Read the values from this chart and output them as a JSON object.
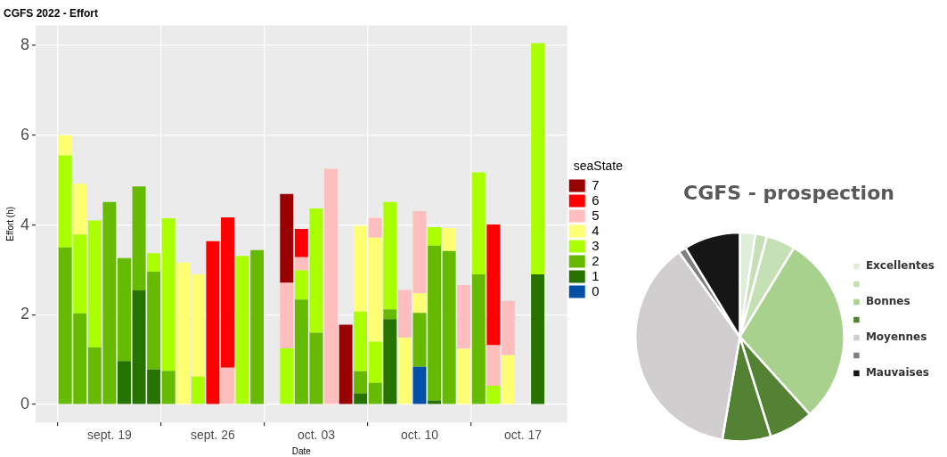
{
  "chart_data": [
    {
      "type": "bar",
      "title": "CGFS 2022 - Effort",
      "xlabel": "Date",
      "ylabel": "Effort (h)",
      "legend_title": "seaState",
      "legend": "right",
      "stacked": true,
      "grid": true,
      "x": [
        "2022-09-16",
        "2022-09-17",
        "2022-09-18",
        "2022-09-19",
        "2022-09-20",
        "2022-09-21",
        "2022-09-22",
        "2022-09-23",
        "2022-09-24",
        "2022-09-25",
        "2022-09-26",
        "2022-09-27",
        "2022-09-28",
        "2022-09-29",
        "2022-10-01",
        "2022-10-02",
        "2022-10-03",
        "2022-10-04",
        "2022-10-05",
        "2022-10-06",
        "2022-10-07",
        "2022-10-08",
        "2022-10-09",
        "2022-10-10",
        "2022-10-11",
        "2022-10-12",
        "2022-10-13",
        "2022-10-14",
        "2022-10-15",
        "2022-10-16",
        "2022-10-18"
      ],
      "xlim": [
        "2022-09-14",
        "2022-10-20"
      ],
      "xticks": [
        {
          "value": "2022-09-19",
          "label": "sept. 19"
        },
        {
          "value": "2022-09-26",
          "label": "sept. 26"
        },
        {
          "value": "2022-10-03",
          "label": "oct. 03"
        },
        {
          "value": "2022-10-10",
          "label": "oct. 10"
        },
        {
          "value": "2022-10-17",
          "label": "oct. 17"
        }
      ],
      "ylim": [
        -0.4,
        8.45
      ],
      "yticks": [
        0,
        2,
        4,
        6,
        8
      ],
      "series": [
        {
          "name": "0",
          "color": "#0050aa",
          "values": [
            null,
            null,
            null,
            null,
            null,
            null,
            null,
            null,
            null,
            null,
            null,
            null,
            null,
            null,
            null,
            null,
            null,
            null,
            null,
            null,
            null,
            null,
            null,
            0.84,
            null,
            null,
            null,
            null,
            null,
            null,
            null
          ]
        },
        {
          "name": "1",
          "color": "#267300",
          "values": [
            null,
            null,
            null,
            null,
            0.97,
            2.54,
            0.78,
            null,
            null,
            null,
            null,
            null,
            null,
            null,
            null,
            null,
            null,
            null,
            null,
            0.25,
            null,
            1.9,
            null,
            null,
            0.09,
            null,
            null,
            null,
            null,
            null,
            2.9
          ]
        },
        {
          "name": "2",
          "color": "#66bb00",
          "values": [
            3.5,
            2.03,
            1.27,
            4.51,
            2.29,
            2.32,
            2.18,
            0.75,
            null,
            null,
            null,
            null,
            null,
            3.44,
            null,
            2.34,
            1.6,
            null,
            null,
            0.49,
            0.48,
            0.22,
            null,
            1.2,
            3.45,
            3.42,
            null,
            2.9,
            null,
            null,
            null
          ]
        },
        {
          "name": "3",
          "color": "#aaff00",
          "values": [
            2.05,
            1.76,
            2.83,
            null,
            null,
            null,
            0.41,
            3.4,
            null,
            0.62,
            null,
            null,
            3.31,
            null,
            1.25,
            0.65,
            2.77,
            null,
            null,
            1.33,
            0.92,
            2.39,
            null,
            null,
            0.41,
            null,
            null,
            2.27,
            0.42,
            null,
            5.15
          ]
        },
        {
          "name": "4",
          "color": "#ffff73",
          "values": [
            0.45,
            1.13,
            null,
            null,
            null,
            null,
            null,
            null,
            3.16,
            2.28,
            null,
            null,
            null,
            null,
            null,
            null,
            null,
            null,
            null,
            1.91,
            2.32,
            null,
            1.49,
            0.44,
            null,
            0.51,
            1.24,
            null,
            null,
            1.1,
            null
          ]
        },
        {
          "name": "5",
          "color": "#ffbebe",
          "values": [
            null,
            null,
            null,
            null,
            null,
            null,
            null,
            null,
            null,
            null,
            null,
            0.82,
            null,
            null,
            1.46,
            0.29,
            null,
            5.25,
            null,
            null,
            0.44,
            null,
            1.06,
            1.83,
            null,
            null,
            1.42,
            null,
            0.9,
            1.21,
            null
          ]
        },
        {
          "name": "6",
          "color": "#ff0000",
          "values": [
            null,
            null,
            null,
            null,
            null,
            null,
            null,
            null,
            null,
            null,
            3.64,
            3.35,
            null,
            null,
            null,
            0.63,
            null,
            null,
            null,
            null,
            null,
            null,
            null,
            null,
            null,
            null,
            null,
            null,
            2.69,
            null,
            null
          ]
        },
        {
          "name": "7",
          "color": "#990000",
          "values": [
            null,
            null,
            null,
            null,
            null,
            null,
            null,
            null,
            null,
            null,
            null,
            null,
            null,
            null,
            1.98,
            null,
            null,
            null,
            1.78,
            null,
            null,
            null,
            null,
            null,
            null,
            null,
            null,
            null,
            null,
            null,
            null
          ]
        }
      ]
    },
    {
      "type": "pie",
      "title": "CGFS - prospection",
      "legend": "right",
      "categories": [
        "Excellentes",
        null,
        null,
        "Bonnes",
        null,
        null,
        "Moyennes",
        null,
        "Mauvaises"
      ],
      "values": [
        2.4,
        1.8,
        4.5,
        29.6,
        6.9,
        7.5,
        37.4,
        1.2,
        8.7
      ],
      "colors": [
        "#dfeed8",
        "#c5e0b4",
        "#c5e0b4",
        "#a9d18e",
        "#548235",
        "#548235",
        "#d0cece",
        "#7f7f7f",
        "#161616"
      ]
    }
  ]
}
